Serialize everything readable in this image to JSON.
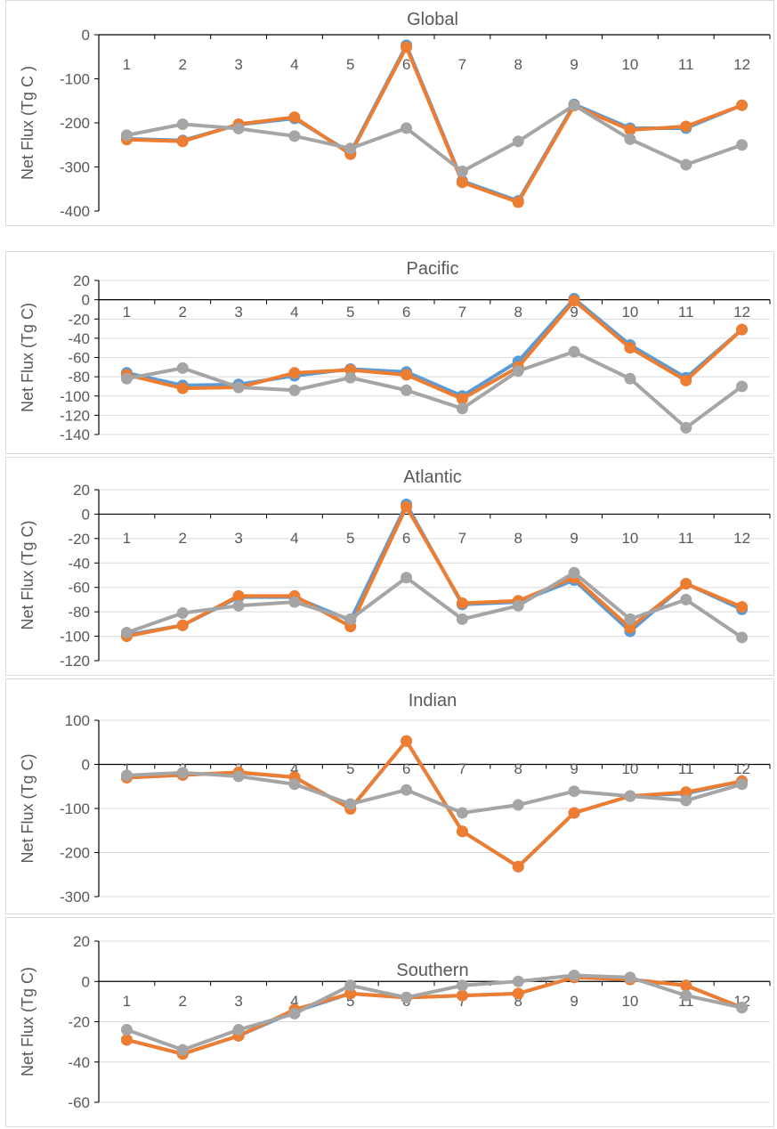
{
  "chart_data": [
    {
      "type": "line",
      "title": "Global",
      "ylabel": "Net Flux (Tg C )",
      "xlabel": "",
      "categories": [
        "1",
        "2",
        "3",
        "4",
        "5",
        "6",
        "7",
        "8",
        "9",
        "10",
        "11",
        "12"
      ],
      "ylim": [
        -400,
        0
      ],
      "yticks": [
        0,
        -100,
        -200,
        -300,
        -400
      ],
      "series": [
        {
          "color": "#5b9bd5",
          "values": [
            -236,
            -240,
            -204,
            -190,
            -268,
            -24,
            -332,
            -377,
            -158,
            -212,
            -212,
            -160
          ]
        },
        {
          "color": "#ed7d31",
          "values": [
            -238,
            -242,
            -203,
            -187,
            -271,
            -28,
            -335,
            -380,
            -161,
            -216,
            -208,
            -160
          ]
        },
        {
          "color": "#a5a5a5",
          "values": [
            -228,
            -203,
            -213,
            -230,
            -258,
            -212,
            -310,
            -242,
            -160,
            -237,
            -295,
            -250
          ]
        }
      ],
      "grid": false,
      "zero_line": false
    },
    {
      "type": "line",
      "title": "Pacific",
      "ylabel": "Net Flux (Tg C)",
      "xlabel": "",
      "categories": [
        "1",
        "2",
        "3",
        "4",
        "5",
        "6",
        "7",
        "8",
        "9",
        "10",
        "11",
        "12"
      ],
      "ylim": [
        -140,
        20
      ],
      "yticks": [
        20,
        0,
        -20,
        -40,
        -60,
        -80,
        -100,
        -120,
        -140
      ],
      "series": [
        {
          "color": "#5b9bd5",
          "values": [
            -76,
            -89,
            -88,
            -79,
            -72,
            -75,
            -100,
            -64,
            1,
            -47,
            -81,
            -31
          ]
        },
        {
          "color": "#ed7d31",
          "values": [
            -78,
            -92,
            -91,
            -76,
            -73,
            -78,
            -103,
            -70,
            -1,
            -50,
            -84,
            -31
          ]
        },
        {
          "color": "#a5a5a5",
          "values": [
            -82,
            -71,
            -91,
            -94,
            -81,
            -94,
            -113,
            -74,
            -54,
            -82,
            -133,
            -90
          ]
        }
      ],
      "grid": true,
      "zero_line": true
    },
    {
      "type": "line",
      "title": "Atlantic",
      "ylabel": "Net Flux (Tg C)",
      "xlabel": "",
      "categories": [
        "1",
        "2",
        "3",
        "4",
        "5",
        "6",
        "7",
        "8",
        "9",
        "10",
        "11",
        "12"
      ],
      "ylim": [
        -120,
        20
      ],
      "yticks": [
        20,
        0,
        -20,
        -40,
        -60,
        -80,
        -100,
        -120
      ],
      "series": [
        {
          "color": "#5b9bd5",
          "values": [
            -99,
            -91,
            -68,
            -68,
            -87,
            8,
            -74,
            -72,
            -54,
            -96,
            -57,
            -78
          ]
        },
        {
          "color": "#ed7d31",
          "values": [
            -100,
            -91,
            -67,
            -67,
            -92,
            6,
            -73,
            -71,
            -52,
            -93,
            -57,
            -76
          ]
        },
        {
          "color": "#a5a5a5",
          "values": [
            -97,
            -81,
            -75,
            -72,
            -86,
            -52,
            -86,
            -75,
            -48,
            -86,
            -70,
            -101
          ]
        }
      ],
      "grid": true,
      "zero_line": true
    },
    {
      "type": "line",
      "title": "Indian",
      "ylabel": "Net Flux (Tg C)",
      "xlabel": "",
      "categories": [
        "1",
        "2",
        "3",
        "4",
        "5",
        "6",
        "7",
        "8",
        "9",
        "10",
        "11",
        "12"
      ],
      "ylim": [
        -300,
        100
      ],
      "yticks": [
        100,
        0,
        -100,
        -200,
        -300
      ],
      "series": [
        {
          "color": "#5b9bd5",
          "values": [
            -30,
            -24,
            -19,
            -29,
            -100,
            53,
            -152,
            -232,
            -110,
            -72,
            -66,
            -38
          ]
        },
        {
          "color": "#ed7d31",
          "values": [
            -30,
            -24,
            -18,
            -29,
            -101,
            53,
            -152,
            -232,
            -110,
            -72,
            -63,
            -38
          ]
        },
        {
          "color": "#a5a5a5",
          "values": [
            -25,
            -19,
            -27,
            -45,
            -90,
            -58,
            -110,
            -92,
            -61,
            -72,
            -82,
            -45
          ]
        }
      ],
      "grid": true,
      "zero_line": true
    },
    {
      "type": "line",
      "title": "Southern",
      "ylabel": "Net Flux (Tg C)",
      "xlabel": "",
      "categories": [
        "1",
        "2",
        "3",
        "4",
        "5",
        "6",
        "7",
        "8",
        "9",
        "10",
        "11",
        "12"
      ],
      "ylim": [
        -60,
        20
      ],
      "yticks": [
        20,
        0,
        -20,
        -40,
        -60
      ],
      "series": [
        {
          "color": "#5b9bd5",
          "values": [
            -29,
            -36,
            -27,
            -15,
            -6,
            -8,
            -7,
            -6,
            2,
            1,
            -2,
            -13
          ]
        },
        {
          "color": "#ed7d31",
          "values": [
            -29,
            -36,
            -27,
            -14,
            -6,
            -8,
            -7,
            -6,
            2,
            1,
            -2,
            -13
          ]
        },
        {
          "color": "#a5a5a5",
          "values": [
            -24,
            -34,
            -24,
            -16,
            -2,
            -8,
            -2,
            0,
            3,
            2,
            -7,
            -13
          ]
        }
      ],
      "grid": true,
      "zero_line": true
    }
  ]
}
